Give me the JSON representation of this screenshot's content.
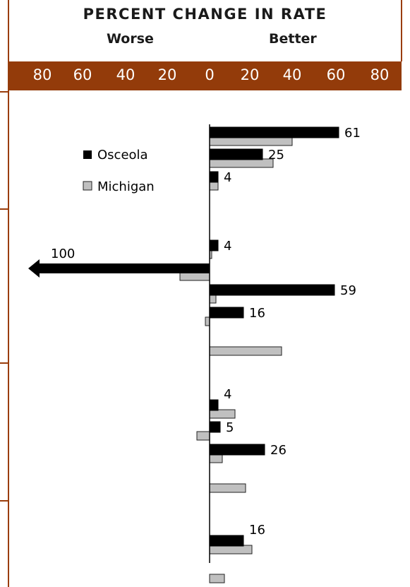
{
  "chart_data": {
    "type": "bar",
    "orientation": "horizontal",
    "title": "PERCENT CHANGE IN RATE",
    "left_label": "Worse",
    "right_label": "Better",
    "x_tick_labels": [
      "80",
      "60",
      "40",
      "20",
      "0",
      "20",
      "40",
      "60",
      "80"
    ],
    "xlim": [
      -80,
      80
    ],
    "legend_placement": "upper-left",
    "series": [
      {
        "name": "Osceola",
        "color": "#000000",
        "values": [
          61,
          25,
          4,
          4,
          -100,
          59,
          16,
          null,
          4,
          5,
          26,
          null,
          16,
          null
        ],
        "value_labels": [
          "61",
          "25",
          "4",
          "4",
          "100",
          "59",
          "16",
          "",
          "4",
          "5",
          "26",
          "",
          "16",
          ""
        ]
      },
      {
        "name": "Michigan",
        "color": "#c0c0c0",
        "values": [
          39,
          30,
          4,
          1,
          -14,
          3,
          -2,
          34,
          12,
          -6,
          6,
          17,
          20,
          7
        ]
      }
    ]
  }
}
